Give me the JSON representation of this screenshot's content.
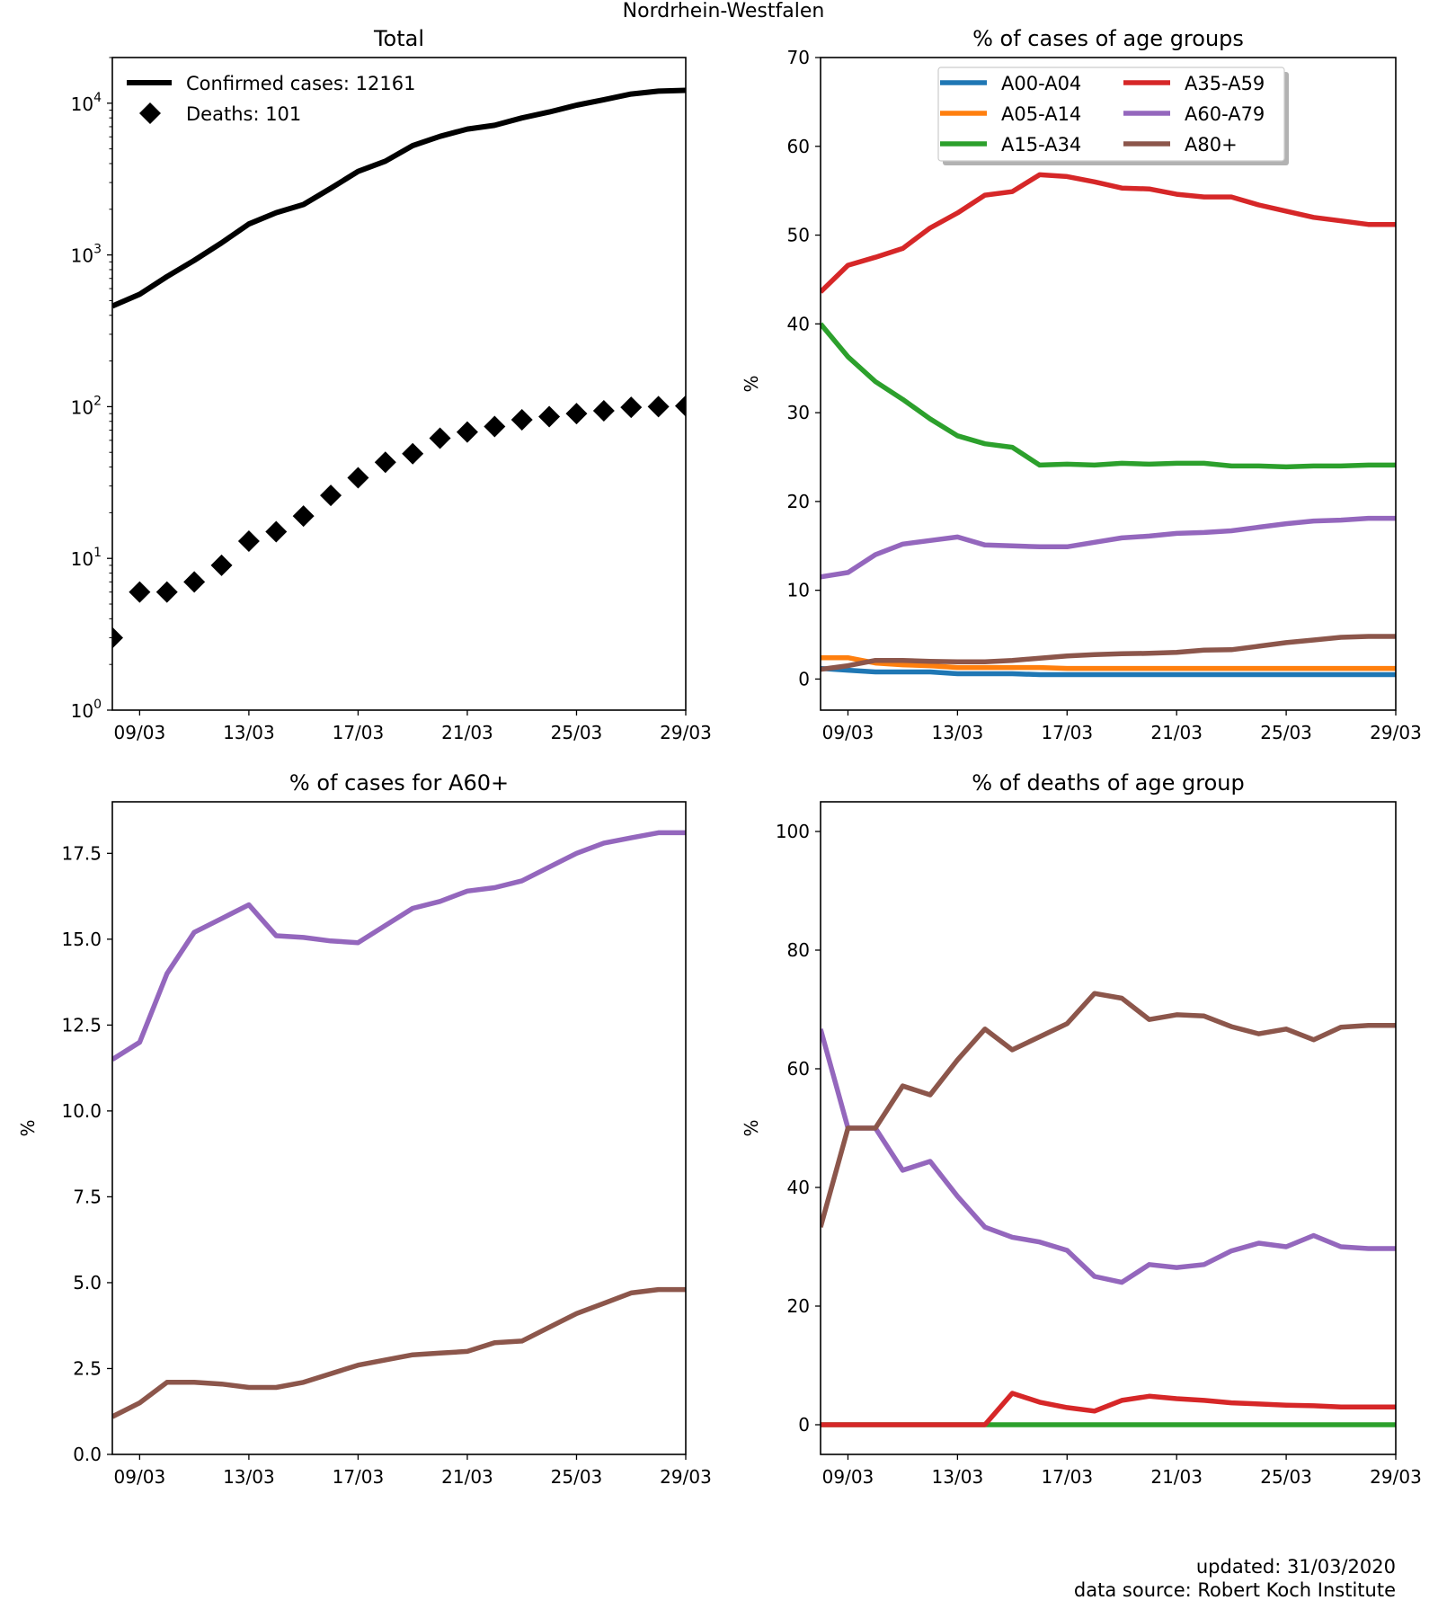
{
  "suptitle": "Nordrhein-Westfalen",
  "footer": {
    "updated": "updated: 31/03/2020",
    "source": "data source: Robert Koch Institute"
  },
  "colors": {
    "confirmed": "#000000",
    "deaths": "#000000",
    "A00-A04": "#1f77b4",
    "A05-A14": "#ff7f0e",
    "A15-A34": "#2ca02c",
    "A35-A59": "#d62728",
    "A60-A79": "#9467bd",
    "A80+": "#8c564b"
  },
  "chart_data": [
    {
      "id": "total",
      "type": "line",
      "title": "Total",
      "xlabel": "",
      "ylabel": "",
      "yscale": "log",
      "xlim": [
        "08/03",
        "29/03"
      ],
      "ylim": [
        1,
        20000
      ],
      "xticks": [
        "09/03",
        "13/03",
        "17/03",
        "21/03",
        "25/03",
        "29/03"
      ],
      "yticks": [
        "10^0",
        "10^1",
        "10^2",
        "10^3",
        "10^4"
      ],
      "legend": "top-left",
      "x": [
        "08/03",
        "09/03",
        "10/03",
        "11/03",
        "12/03",
        "13/03",
        "14/03",
        "15/03",
        "16/03",
        "17/03",
        "18/03",
        "19/03",
        "20/03",
        "21/03",
        "22/03",
        "23/03",
        "24/03",
        "25/03",
        "26/03",
        "27/03",
        "28/03",
        "29/03"
      ],
      "series": [
        {
          "name": "Confirmed cases: 12161",
          "key": "confirmed",
          "style": "line",
          "values": [
            460,
            550,
            720,
            920,
            1200,
            1600,
            1900,
            2150,
            2750,
            3550,
            4150,
            5250,
            6050,
            6750,
            7150,
            8000,
            8750,
            9700,
            10550,
            11500,
            12000,
            12161
          ]
        },
        {
          "name": "Deaths: 101",
          "key": "deaths",
          "style": "marker",
          "values": [
            3,
            6,
            6,
            7,
            9,
            13,
            15,
            19,
            26,
            34,
            43,
            49,
            62,
            68,
            74,
            82,
            86,
            90,
            94,
            99,
            100,
            101
          ]
        }
      ]
    },
    {
      "id": "age_cases",
      "type": "line",
      "title": "% of cases of age groups",
      "xlabel": "",
      "ylabel": "%",
      "xlim": [
        "08/03",
        "29/03"
      ],
      "ylim": [
        -3.5,
        70
      ],
      "xticks": [
        "09/03",
        "13/03",
        "17/03",
        "21/03",
        "25/03",
        "29/03"
      ],
      "yticks": [
        0,
        10,
        20,
        30,
        40,
        50,
        60,
        70
      ],
      "legend": "top-center",
      "x": [
        "08/03",
        "09/03",
        "10/03",
        "11/03",
        "12/03",
        "13/03",
        "14/03",
        "15/03",
        "16/03",
        "17/03",
        "18/03",
        "19/03",
        "20/03",
        "21/03",
        "22/03",
        "23/03",
        "24/03",
        "25/03",
        "26/03",
        "27/03",
        "28/03",
        "29/03"
      ],
      "series": [
        {
          "name": "A00-A04",
          "values": [
            1.2,
            1.0,
            0.8,
            0.8,
            0.8,
            0.6,
            0.6,
            0.6,
            0.5,
            0.5,
            0.5,
            0.5,
            0.5,
            0.5,
            0.5,
            0.5,
            0.5,
            0.5,
            0.5,
            0.5,
            0.5,
            0.5
          ]
        },
        {
          "name": "A05-A14",
          "values": [
            2.4,
            2.4,
            1.8,
            1.6,
            1.5,
            1.3,
            1.3,
            1.3,
            1.3,
            1.2,
            1.2,
            1.2,
            1.2,
            1.2,
            1.2,
            1.2,
            1.2,
            1.2,
            1.2,
            1.2,
            1.2,
            1.2
          ]
        },
        {
          "name": "A15-A34",
          "values": [
            40.0,
            36.3,
            33.5,
            31.5,
            29.3,
            27.4,
            26.5,
            26.1,
            24.1,
            24.2,
            24.1,
            24.3,
            24.2,
            24.3,
            24.3,
            24.0,
            24.0,
            23.9,
            24.0,
            24.0,
            24.1,
            24.1
          ]
        },
        {
          "name": "A35-A59",
          "values": [
            43.6,
            46.6,
            47.5,
            48.5,
            50.8,
            52.5,
            54.5,
            54.9,
            56.8,
            56.6,
            56.0,
            55.3,
            55.2,
            54.6,
            54.3,
            54.3,
            53.4,
            52.7,
            52.0,
            51.6,
            51.2,
            51.2
          ]
        },
        {
          "name": "A60-A79",
          "values": [
            11.5,
            12.0,
            14.0,
            15.2,
            15.6,
            16.0,
            15.1,
            15.0,
            14.9,
            14.9,
            15.4,
            15.9,
            16.1,
            16.4,
            16.5,
            16.7,
            17.1,
            17.5,
            17.8,
            17.9,
            18.1,
            18.1
          ]
        },
        {
          "name": "A80+",
          "values": [
            1.1,
            1.5,
            2.1,
            2.1,
            2.0,
            1.95,
            1.95,
            2.1,
            2.35,
            2.6,
            2.75,
            2.85,
            2.9,
            3.0,
            3.25,
            3.3,
            3.7,
            4.1,
            4.4,
            4.7,
            4.8,
            4.8
          ]
        }
      ]
    },
    {
      "id": "cases_a60",
      "type": "line",
      "title": "% of cases for A60+",
      "xlabel": "",
      "ylabel": "%",
      "xlim": [
        "08/03",
        "29/03"
      ],
      "ylim": [
        0,
        19
      ],
      "xticks": [
        "09/03",
        "13/03",
        "17/03",
        "21/03",
        "25/03",
        "29/03"
      ],
      "yticks": [
        "0.0",
        "2.5",
        "5.0",
        "7.5",
        "10.0",
        "12.5",
        "15.0",
        "17.5"
      ],
      "x": [
        "08/03",
        "09/03",
        "10/03",
        "11/03",
        "12/03",
        "13/03",
        "14/03",
        "15/03",
        "16/03",
        "17/03",
        "18/03",
        "19/03",
        "20/03",
        "21/03",
        "22/03",
        "23/03",
        "24/03",
        "25/03",
        "26/03",
        "27/03",
        "28/03",
        "29/03"
      ],
      "series": [
        {
          "key": "A60-A79",
          "values": [
            11.5,
            12.0,
            14.0,
            15.2,
            15.6,
            16.0,
            15.1,
            15.05,
            14.95,
            14.9,
            15.4,
            15.9,
            16.1,
            16.4,
            16.5,
            16.7,
            17.1,
            17.5,
            17.8,
            17.95,
            18.1,
            18.1
          ]
        },
        {
          "key": "A80+",
          "values": [
            1.1,
            1.5,
            2.1,
            2.1,
            2.05,
            1.95,
            1.95,
            2.1,
            2.35,
            2.6,
            2.75,
            2.9,
            2.95,
            3.0,
            3.25,
            3.3,
            3.7,
            4.1,
            4.4,
            4.7,
            4.8,
            4.8
          ]
        }
      ]
    },
    {
      "id": "age_deaths",
      "type": "line",
      "title": "% of deaths of age group",
      "xlabel": "",
      "ylabel": "%",
      "xlim": [
        "08/03",
        "29/03"
      ],
      "ylim": [
        -5,
        105
      ],
      "xticks": [
        "09/03",
        "13/03",
        "17/03",
        "21/03",
        "25/03",
        "29/03"
      ],
      "yticks": [
        0,
        20,
        40,
        60,
        80,
        100
      ],
      "x": [
        "08/03",
        "09/03",
        "10/03",
        "11/03",
        "12/03",
        "13/03",
        "14/03",
        "15/03",
        "16/03",
        "17/03",
        "18/03",
        "19/03",
        "20/03",
        "21/03",
        "22/03",
        "23/03",
        "24/03",
        "25/03",
        "26/03",
        "27/03",
        "28/03",
        "29/03"
      ],
      "series": [
        {
          "key": "A15-A34",
          "values": [
            0,
            0,
            0,
            0,
            0,
            0,
            0,
            0,
            0,
            0,
            0,
            0,
            0,
            0,
            0,
            0,
            0,
            0,
            0,
            0,
            0,
            0
          ]
        },
        {
          "key": "A35-A59",
          "values": [
            0,
            0,
            0,
            0,
            0,
            0,
            0,
            5.3,
            3.8,
            2.9,
            2.3,
            4.1,
            4.8,
            4.4,
            4.1,
            3.7,
            3.5,
            3.3,
            3.2,
            3.0,
            3.0,
            3.0
          ]
        },
        {
          "key": "A60-A79",
          "values": [
            66.7,
            50.0,
            50.0,
            42.9,
            44.4,
            38.5,
            33.3,
            31.6,
            30.8,
            29.4,
            25.0,
            24.0,
            27.0,
            26.5,
            27.0,
            29.3,
            30.6,
            30.0,
            31.9,
            30.0,
            29.7,
            29.7
          ]
        },
        {
          "key": "A80+",
          "values": [
            33.3,
            50.0,
            50.0,
            57.1,
            55.6,
            61.5,
            66.7,
            63.2,
            65.4,
            67.6,
            72.7,
            71.9,
            68.3,
            69.1,
            68.9,
            67.1,
            65.9,
            66.7,
            64.9,
            67.0,
            67.3,
            67.3
          ]
        }
      ]
    }
  ]
}
